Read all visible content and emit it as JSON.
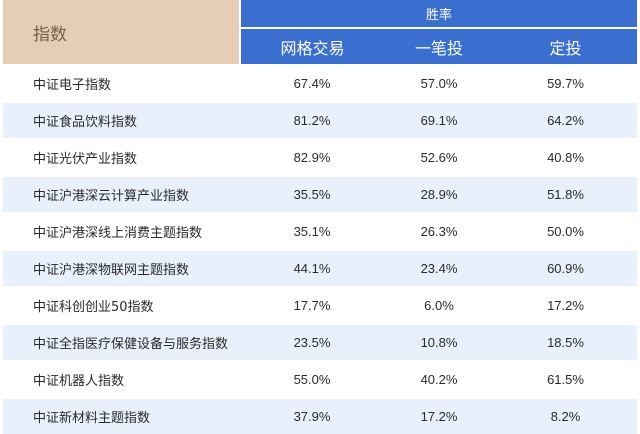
{
  "header": {
    "index_label": "指数",
    "group_label": "胜率",
    "columns": [
      "网格交易",
      "一笔投",
      "定投"
    ]
  },
  "rows": [
    {
      "name": "中证电子指数",
      "grid": "67.4%",
      "lump": "57.0%",
      "dca": "59.7%"
    },
    {
      "name": "中证食品饮料指数",
      "grid": "81.2%",
      "lump": "69.1%",
      "dca": "64.2%"
    },
    {
      "name": "中证光伏产业指数",
      "grid": "82.9%",
      "lump": "52.6%",
      "dca": "40.8%"
    },
    {
      "name": "中证沪港深云计算产业指数",
      "grid": "35.5%",
      "lump": "28.9%",
      "dca": "51.8%"
    },
    {
      "name": "中证沪港深线上消费主题指数",
      "grid": "35.1%",
      "lump": "26.3%",
      "dca": "50.0%"
    },
    {
      "name": "中证沪港深物联网主题指数",
      "grid": "44.1%",
      "lump": "23.4%",
      "dca": "60.9%"
    },
    {
      "name": "中证科创创业50指数",
      "grid": "17.7%",
      "lump": "6.0%",
      "dca": "17.2%"
    },
    {
      "name": "中证全指医疗保健设备与服务指数",
      "grid": "23.5%",
      "lump": "10.8%",
      "dca": "18.5%"
    },
    {
      "name": "中证机器人指数",
      "grid": "55.0%",
      "lump": "40.2%",
      "dca": "61.5%"
    },
    {
      "name": "中证新材料主题指数",
      "grid": "37.9%",
      "lump": "17.2%",
      "dca": "8.2%"
    }
  ],
  "colors": {
    "header_index_bg": "#e6cdb6",
    "header_index_text": "#7a5e46",
    "header_blue": "#3b6fcf",
    "row_stripe": "#e8f1fb"
  }
}
